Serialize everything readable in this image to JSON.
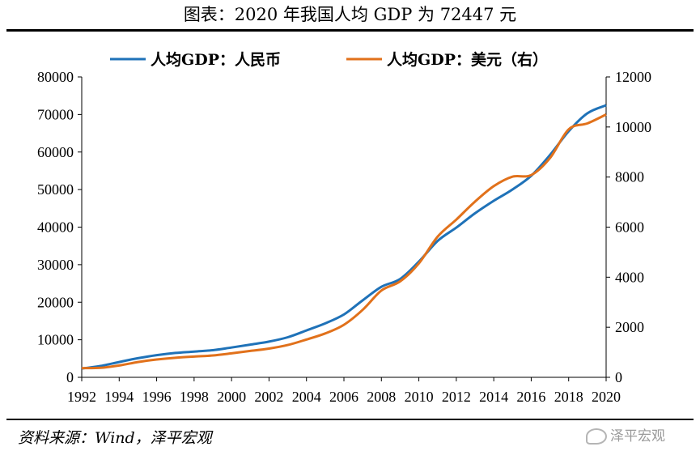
{
  "header": {
    "title": "图表：2020 年我国人均 GDP 为 72447 元"
  },
  "footer": {
    "source": "资料来源：Wind，泽平宏观",
    "watermark": "泽平宏观"
  },
  "colors": {
    "rmb": "#1f72b8",
    "usd": "#e1711b"
  },
  "chart_data": {
    "type": "line",
    "title": "图表：2020 年我国人均 GDP 为 72447 元",
    "x": [
      1992,
      1993,
      1994,
      1995,
      1996,
      1997,
      1998,
      1999,
      2000,
      2001,
      2002,
      2003,
      2004,
      2005,
      2006,
      2007,
      2008,
      2009,
      2010,
      2011,
      2012,
      2013,
      2014,
      2015,
      2016,
      2017,
      2018,
      2019,
      2020
    ],
    "x_ticks": [
      "1992",
      "1994",
      "1996",
      "1998",
      "2000",
      "2002",
      "2004",
      "2006",
      "2008",
      "2010",
      "2012",
      "2014",
      "2016",
      "2018",
      "2020"
    ],
    "xlim": [
      1992,
      2020
    ],
    "ylim_left": [
      0,
      80000
    ],
    "y_ticks_left": [
      "0",
      "10000",
      "20000",
      "30000",
      "40000",
      "50000",
      "60000",
      "70000",
      "80000"
    ],
    "ylim_right": [
      0,
      12000
    ],
    "y_ticks_right": [
      "0",
      "2000",
      "4000",
      "6000",
      "8000",
      "10000",
      "12000"
    ],
    "legend_position": "top-center",
    "grid": false,
    "series": [
      {
        "name": "人均GDP：人民币",
        "axis": "left",
        "color": "#1f72b8",
        "values": [
          2334,
          3027,
          4081,
          5091,
          5898,
          6481,
          6860,
          7229,
          7942,
          8717,
          9506,
          10666,
          12487,
          14368,
          16738,
          20494,
          24100,
          26180,
          30808,
          36302,
          39874,
          43684,
          47005,
          50028,
          53680,
          59201,
          65534,
          70328,
          72447
        ]
      },
      {
        "name": "人均GDP：美元（右）",
        "axis": "right",
        "color": "#e1711b",
        "values": [
          366,
          377,
          473,
          610,
          710,
          781,
          829,
          873,
          959,
          1053,
          1149,
          1289,
          1509,
          1753,
          2099,
          2693,
          3468,
          3832,
          4550,
          5614,
          6301,
          7020,
          7636,
          8016,
          8079,
          8759,
          9905,
          10144,
          10500
        ]
      }
    ]
  }
}
